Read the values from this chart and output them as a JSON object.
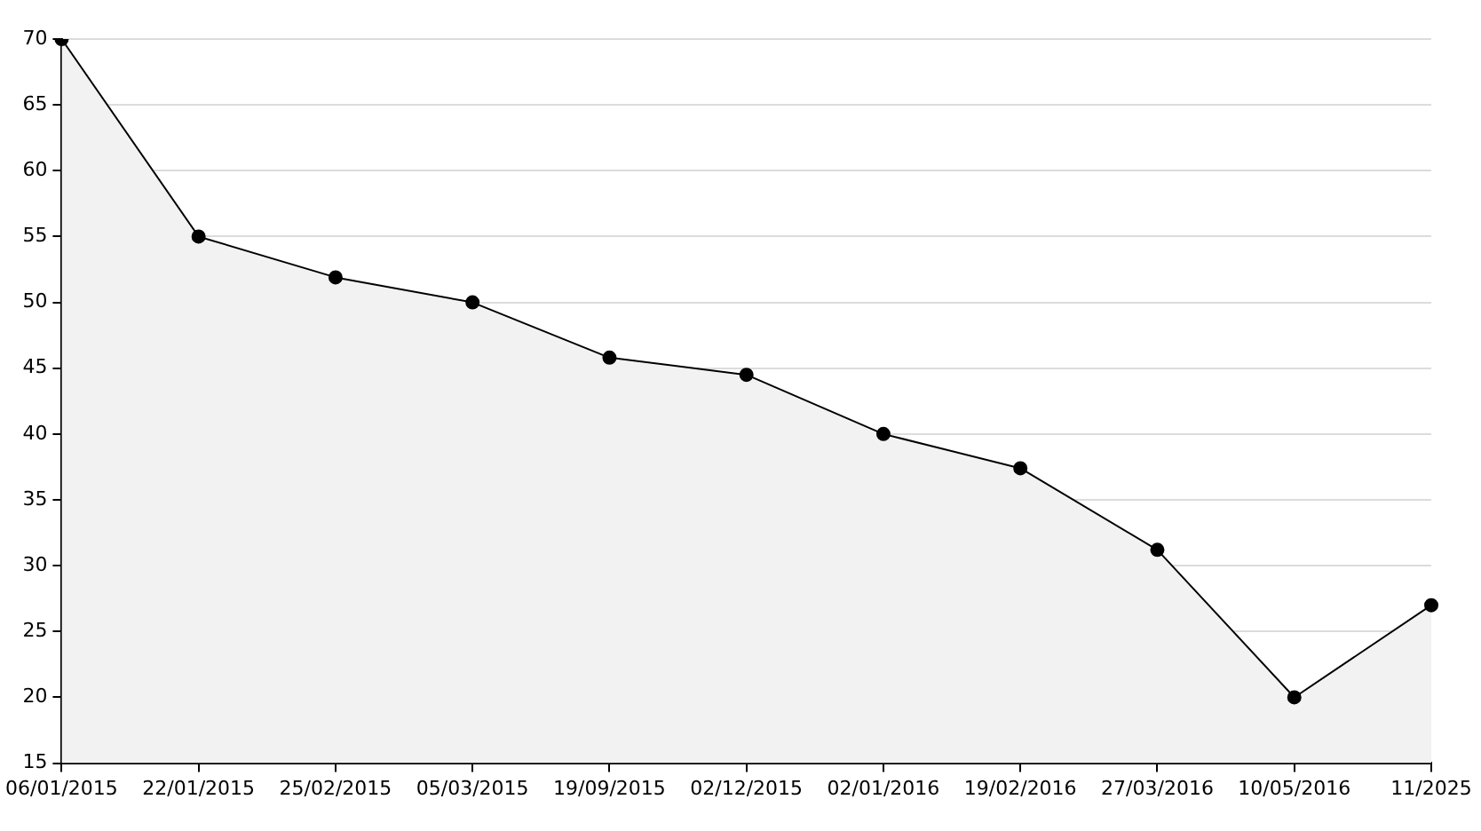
{
  "chart_data": {
    "type": "area",
    "categories": [
      "06/01/2015",
      "22/01/2015",
      "25/02/2015",
      "05/03/2015",
      "19/09/2015",
      "02/12/2015",
      "02/01/2016",
      "19/02/2016",
      "27/03/2016",
      "10/05/2016",
      "11/2025"
    ],
    "series": [
      {
        "color": "#000000",
        "values": [
          70,
          55,
          51.9,
          50,
          45.8,
          44.5,
          40,
          37.4,
          31.2,
          20,
          27
        ]
      }
    ],
    "ylim": [
      15,
      70
    ],
    "yticks": [
      15,
      20,
      25,
      30,
      35,
      40,
      45,
      50,
      55,
      60,
      65,
      70
    ],
    "grid": "y",
    "legend": false,
    "marker": "circle"
  }
}
